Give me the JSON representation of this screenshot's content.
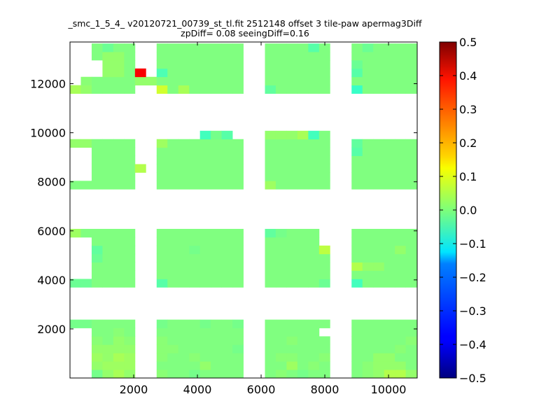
{
  "chart_data": {
    "type": "heatmap",
    "title": "_smc_1_5_4_ v20120721_00739_st_tl.fit 2512148 offset 3 tile-paw apermag3Diff",
    "subtitle": "zpDiff= 0.08 seeingDiff=0.16",
    "xlabel": "",
    "ylabel": "",
    "xlim": [
      0,
      10900
    ],
    "ylim": [
      0,
      13700
    ],
    "x_ticks": [
      {
        "value": 2000,
        "label": "2000"
      },
      {
        "value": 4000,
        "label": "4000"
      },
      {
        "value": 6000,
        "label": "6000"
      },
      {
        "value": 8000,
        "label": "8000"
      },
      {
        "value": 10000,
        "label": "10000"
      }
    ],
    "y_ticks": [
      {
        "value": 2000,
        "label": "2000"
      },
      {
        "value": 4000,
        "label": "4000"
      },
      {
        "value": 6000,
        "label": "6000"
      },
      {
        "value": 8000,
        "label": "8000"
      },
      {
        "value": 10000,
        "label": "10000"
      },
      {
        "value": 12000,
        "label": "12000"
      }
    ],
    "colorbar": {
      "colormap": "jet",
      "min": -0.5,
      "max": 0.5,
      "ticks": [
        {
          "value": 0.5,
          "label": "0.5"
        },
        {
          "value": 0.4,
          "label": "0.4"
        },
        {
          "value": 0.3,
          "label": "0.3"
        },
        {
          "value": 0.2,
          "label": "0.2"
        },
        {
          "value": 0.1,
          "label": "0.1"
        },
        {
          "value": 0.0,
          "label": "0.0"
        },
        {
          "value": -0.1,
          "label": "−0.1"
        },
        {
          "value": -0.2,
          "label": "−0.2"
        },
        {
          "value": -0.3,
          "label": "−0.3"
        },
        {
          "value": -0.4,
          "label": "−0.4"
        },
        {
          "value": -0.5,
          "label": "−0.5"
        }
      ]
    },
    "cell_size": 340,
    "x_columns": [
      0,
      340,
      680,
      1020,
      1360,
      1700,
      2040,
      2380,
      2720,
      3060,
      3400,
      3740,
      4080,
      4420,
      4760,
      5100,
      5440,
      5780,
      6120,
      6460,
      6800,
      7140,
      7480,
      7820,
      8160,
      8500,
      8840,
      9180,
      9520,
      9860,
      10200,
      10540
    ],
    "y_rows": [
      0,
      340,
      680,
      1020,
      1360,
      1700,
      2040,
      3700,
      4040,
      4380,
      4720,
      5060,
      5400,
      5740,
      7700,
      8040,
      8380,
      8720,
      9060,
      9400,
      9740,
      10080,
      11600,
      11940,
      12280,
      12620,
      12960,
      13300
    ],
    "dominant_value": 0.0,
    "grid": [
      [
        null,
        null,
        -0.01,
        0.02,
        0.04,
        0.02,
        null,
        null,
        0.01,
        0.0,
        0.0,
        -0.01,
        0.0,
        0.0,
        0.0,
        0.0,
        null,
        null,
        0.0,
        0.01,
        0.0,
        -0.01,
        0.0,
        0.0,
        null,
        null,
        0.0,
        0.01,
        0.02,
        0.05,
        0.05,
        0.02
      ],
      [
        null,
        null,
        0.02,
        0.03,
        0.03,
        0.03,
        null,
        null,
        0.0,
        0.0,
        0.0,
        0.0,
        0.02,
        0.0,
        0.0,
        0.0,
        null,
        null,
        0.0,
        0.0,
        0.03,
        0.0,
        0.01,
        0.0,
        null,
        null,
        0.0,
        0.01,
        0.02,
        0.02,
        0.02,
        0.0
      ],
      [
        null,
        null,
        0.03,
        0.02,
        0.04,
        0.03,
        null,
        null,
        0.01,
        0.0,
        0.0,
        0.01,
        0.0,
        0.0,
        0.0,
        0.0,
        null,
        null,
        0.0,
        0.01,
        0.01,
        0.0,
        0.0,
        0.01,
        null,
        null,
        0.0,
        0.0,
        0.02,
        0.02,
        0.0,
        0.0
      ],
      [
        null,
        null,
        0.02,
        0.02,
        0.02,
        0.02,
        null,
        null,
        0.01,
        0.01,
        0.0,
        0.0,
        0.0,
        0.0,
        0.0,
        -0.01,
        null,
        null,
        0.0,
        0.0,
        0.0,
        0.0,
        0.0,
        0.0,
        null,
        null,
        0.0,
        0.0,
        0.0,
        0.0,
        0.01,
        0.0
      ],
      [
        null,
        null,
        0.01,
        0.0,
        0.02,
        0.01,
        null,
        null,
        0.01,
        0.0,
        0.0,
        0.0,
        0.0,
        0.0,
        0.0,
        0.0,
        null,
        null,
        0.0,
        0.0,
        0.01,
        0.0,
        0.0,
        0.0,
        null,
        null,
        0.0,
        0.0,
        0.0,
        0.0,
        0.0,
        0.01
      ],
      [
        null,
        null,
        0.0,
        0.0,
        0.01,
        0.0,
        null,
        null,
        0.0,
        0.0,
        0.0,
        0.0,
        0.0,
        0.0,
        0.0,
        0.0,
        null,
        null,
        0.0,
        0.0,
        0.0,
        0.0,
        0.0,
        null,
        null,
        null,
        0.0,
        0.0,
        0.0,
        0.0,
        0.0,
        0.0
      ],
      [
        -0.01,
        -0.01,
        0.0,
        0.0,
        0.0,
        0.0,
        null,
        null,
        -0.01,
        0.0,
        0.0,
        0.0,
        -0.01,
        0.0,
        0.0,
        -0.01,
        null,
        null,
        0.0,
        0.0,
        0.0,
        0.0,
        0.0,
        0.0,
        null,
        null,
        0.0,
        0.0,
        0.0,
        0.0,
        0.0,
        0.0
      ],
      [
        -0.02,
        -0.02,
        0.0,
        0.0,
        0.0,
        0.0,
        null,
        null,
        -0.04,
        0.0,
        0.0,
        0.0,
        0.0,
        0.0,
        0.0,
        0.0,
        null,
        null,
        0.0,
        0.0,
        0.0,
        0.0,
        0.0,
        -0.02,
        null,
        null,
        -0.06,
        0.0,
        0.0,
        0.0,
        0.0,
        0.0
      ],
      [
        null,
        null,
        0.0,
        0.0,
        0.0,
        0.0,
        null,
        null,
        0.0,
        0.0,
        0.0,
        0.0,
        0.0,
        0.0,
        0.0,
        0.0,
        null,
        null,
        0.0,
        0.0,
        0.0,
        0.0,
        0.0,
        0.0,
        null,
        null,
        0.0,
        0.0,
        0.0,
        0.0,
        0.0,
        0.0
      ],
      [
        null,
        null,
        0.0,
        0.0,
        0.0,
        0.0,
        null,
        null,
        0.0,
        0.0,
        0.0,
        0.0,
        0.0,
        0.0,
        0.0,
        0.0,
        null,
        null,
        0.0,
        0.0,
        0.0,
        0.0,
        0.0,
        0.0,
        null,
        null,
        0.05,
        0.02,
        0.02,
        0.0,
        0.0,
        0.0
      ],
      [
        null,
        null,
        -0.02,
        0.0,
        0.0,
        0.0,
        null,
        null,
        0.0,
        0.0,
        0.0,
        0.0,
        0.0,
        0.0,
        0.0,
        0.0,
        null,
        null,
        0.0,
        0.0,
        0.0,
        0.0,
        0.0,
        0.0,
        null,
        null,
        0.0,
        0.0,
        0.0,
        0.0,
        0.0,
        0.0
      ],
      [
        null,
        null,
        -0.03,
        0.0,
        0.0,
        0.0,
        null,
        null,
        0.0,
        0.0,
        0.0,
        -0.01,
        0.0,
        0.0,
        0.0,
        0.0,
        null,
        null,
        0.0,
        0.0,
        0.0,
        0.0,
        0.0,
        0.06,
        null,
        null,
        0.0,
        0.0,
        0.0,
        0.0,
        0.02,
        0.0
      ],
      [
        null,
        null,
        0.0,
        0.0,
        0.0,
        0.0,
        null,
        null,
        0.0,
        0.0,
        0.0,
        0.0,
        0.0,
        0.0,
        0.0,
        0.0,
        null,
        null,
        0.0,
        0.0,
        0.0,
        0.0,
        0.0,
        null,
        null,
        null,
        0.0,
        0.0,
        0.0,
        0.0,
        0.0,
        0.0
      ],
      [
        0.03,
        0.0,
        0.0,
        0.0,
        0.0,
        0.0,
        null,
        null,
        0.0,
        0.0,
        0.0,
        0.0,
        0.0,
        0.0,
        0.0,
        0.0,
        null,
        null,
        -0.03,
        -0.01,
        0.0,
        0.0,
        0.0,
        null,
        null,
        null,
        0.0,
        0.0,
        0.0,
        0.0,
        0.0,
        0.0
      ],
      [
        0.0,
        0.0,
        0.0,
        0.0,
        0.0,
        0.0,
        null,
        null,
        0.0,
        0.0,
        0.0,
        0.0,
        0.0,
        0.0,
        0.0,
        0.0,
        null,
        null,
        0.03,
        0.0,
        0.0,
        0.0,
        0.0,
        0.0,
        null,
        null,
        0.0,
        0.0,
        0.0,
        0.0,
        0.0,
        0.0
      ],
      [
        null,
        null,
        0.0,
        0.0,
        0.0,
        0.0,
        null,
        null,
        0.0,
        0.0,
        0.0,
        0.0,
        0.0,
        0.0,
        0.0,
        0.0,
        null,
        null,
        0.0,
        0.0,
        0.0,
        0.0,
        0.0,
        0.0,
        null,
        null,
        0.0,
        0.0,
        0.0,
        0.0,
        0.0,
        0.0
      ],
      [
        null,
        null,
        0.0,
        0.0,
        0.0,
        0.0,
        0.05,
        null,
        0.0,
        0.0,
        0.0,
        0.0,
        0.0,
        0.0,
        0.0,
        0.0,
        null,
        null,
        0.0,
        0.0,
        0.0,
        0.0,
        0.0,
        0.0,
        null,
        null,
        0.0,
        0.0,
        0.0,
        0.0,
        0.0,
        0.0
      ],
      [
        null,
        null,
        0.0,
        0.0,
        0.0,
        0.0,
        null,
        null,
        0.0,
        0.0,
        0.0,
        0.0,
        0.0,
        0.0,
        0.0,
        0.0,
        null,
        null,
        0.0,
        0.0,
        0.0,
        0.0,
        0.0,
        0.0,
        null,
        null,
        0.0,
        0.0,
        0.0,
        0.0,
        0.0,
        0.0
      ],
      [
        null,
        null,
        0.0,
        0.0,
        0.0,
        0.0,
        null,
        null,
        0.0,
        0.0,
        0.0,
        0.0,
        0.0,
        0.0,
        0.0,
        0.0,
        null,
        null,
        0.0,
        0.0,
        0.0,
        0.0,
        0.0,
        0.0,
        null,
        null,
        -0.04,
        0.0,
        0.0,
        0.0,
        0.0,
        0.0
      ],
      [
        0.02,
        0.02,
        0.0,
        0.0,
        0.0,
        0.0,
        null,
        null,
        0.03,
        0.0,
        0.0,
        0.0,
        0.0,
        0.0,
        0.0,
        0.0,
        null,
        null,
        0.0,
        0.0,
        0.0,
        0.0,
        0.0,
        0.0,
        null,
        null,
        -0.03,
        0.0,
        0.0,
        0.0,
        0.0,
        0.0
      ],
      [
        null,
        null,
        null,
        null,
        null,
        null,
        null,
        null,
        null,
        null,
        null,
        null,
        -0.06,
        -0.01,
        -0.04,
        null,
        null,
        null,
        0.02,
        0.02,
        0.02,
        0.04,
        -0.06,
        0.0,
        null,
        null,
        null,
        null,
        null,
        null,
        null,
        null
      ],
      [
        null,
        null,
        null,
        null,
        null,
        null,
        null,
        null,
        null,
        null,
        null,
        null,
        null,
        null,
        null,
        null,
        null,
        null,
        null,
        null,
        null,
        null,
        null,
        null,
        null,
        null,
        null,
        null,
        null,
        null,
        null,
        null
      ],
      [
        0.04,
        0.02,
        0.0,
        0.0,
        0.0,
        0.0,
        null,
        null,
        0.08,
        0.0,
        0.04,
        0.0,
        0.0,
        0.0,
        0.0,
        0.0,
        null,
        null,
        -0.03,
        0.0,
        0.0,
        0.0,
        0.0,
        0.0,
        null,
        null,
        -0.07,
        0.0,
        0.0,
        0.0,
        0.0,
        0.0
      ],
      [
        null,
        0.01,
        0.0,
        0.0,
        0.0,
        0.0,
        0.02,
        0.02,
        0.0,
        0.0,
        0.0,
        0.0,
        0.0,
        0.0,
        0.0,
        0.0,
        null,
        null,
        0.0,
        0.0,
        0.0,
        0.0,
        0.0,
        0.0,
        null,
        null,
        0.0,
        0.0,
        0.0,
        0.0,
        0.0,
        0.0
      ],
      [
        null,
        null,
        null,
        0.02,
        0.02,
        0.0,
        0.38,
        null,
        -0.05,
        0.0,
        0.0,
        0.0,
        0.0,
        0.0,
        0.0,
        0.0,
        null,
        null,
        0.0,
        0.0,
        0.0,
        0.0,
        0.0,
        0.0,
        null,
        null,
        -0.04,
        0.0,
        0.0,
        0.0,
        0.0,
        0.0
      ],
      [
        null,
        null,
        null,
        0.02,
        0.02,
        0.0,
        null,
        null,
        0.0,
        0.0,
        0.0,
        0.0,
        0.0,
        0.0,
        0.0,
        0.0,
        null,
        null,
        0.0,
        0.0,
        0.0,
        0.0,
        0.0,
        0.0,
        null,
        null,
        -0.02,
        0.0,
        0.0,
        0.0,
        0.0,
        0.0
      ],
      [
        null,
        null,
        0.0,
        0.02,
        0.02,
        0.0,
        null,
        null,
        0.0,
        0.0,
        0.0,
        0.0,
        0.0,
        0.0,
        0.0,
        0.0,
        null,
        null,
        0.0,
        0.0,
        0.0,
        0.0,
        0.0,
        0.0,
        null,
        null,
        0.0,
        0.0,
        0.0,
        0.0,
        0.0,
        0.0
      ],
      [
        null,
        null,
        0.0,
        -0.02,
        0.0,
        0.0,
        null,
        null,
        0.0,
        0.0,
        0.0,
        0.0,
        0.0,
        0.0,
        0.0,
        0.0,
        null,
        null,
        0.0,
        0.0,
        0.0,
        0.0,
        -0.04,
        0.0,
        null,
        null,
        0.0,
        -0.02,
        0.0,
        0.0,
        0.0,
        0.0
      ]
    ]
  }
}
